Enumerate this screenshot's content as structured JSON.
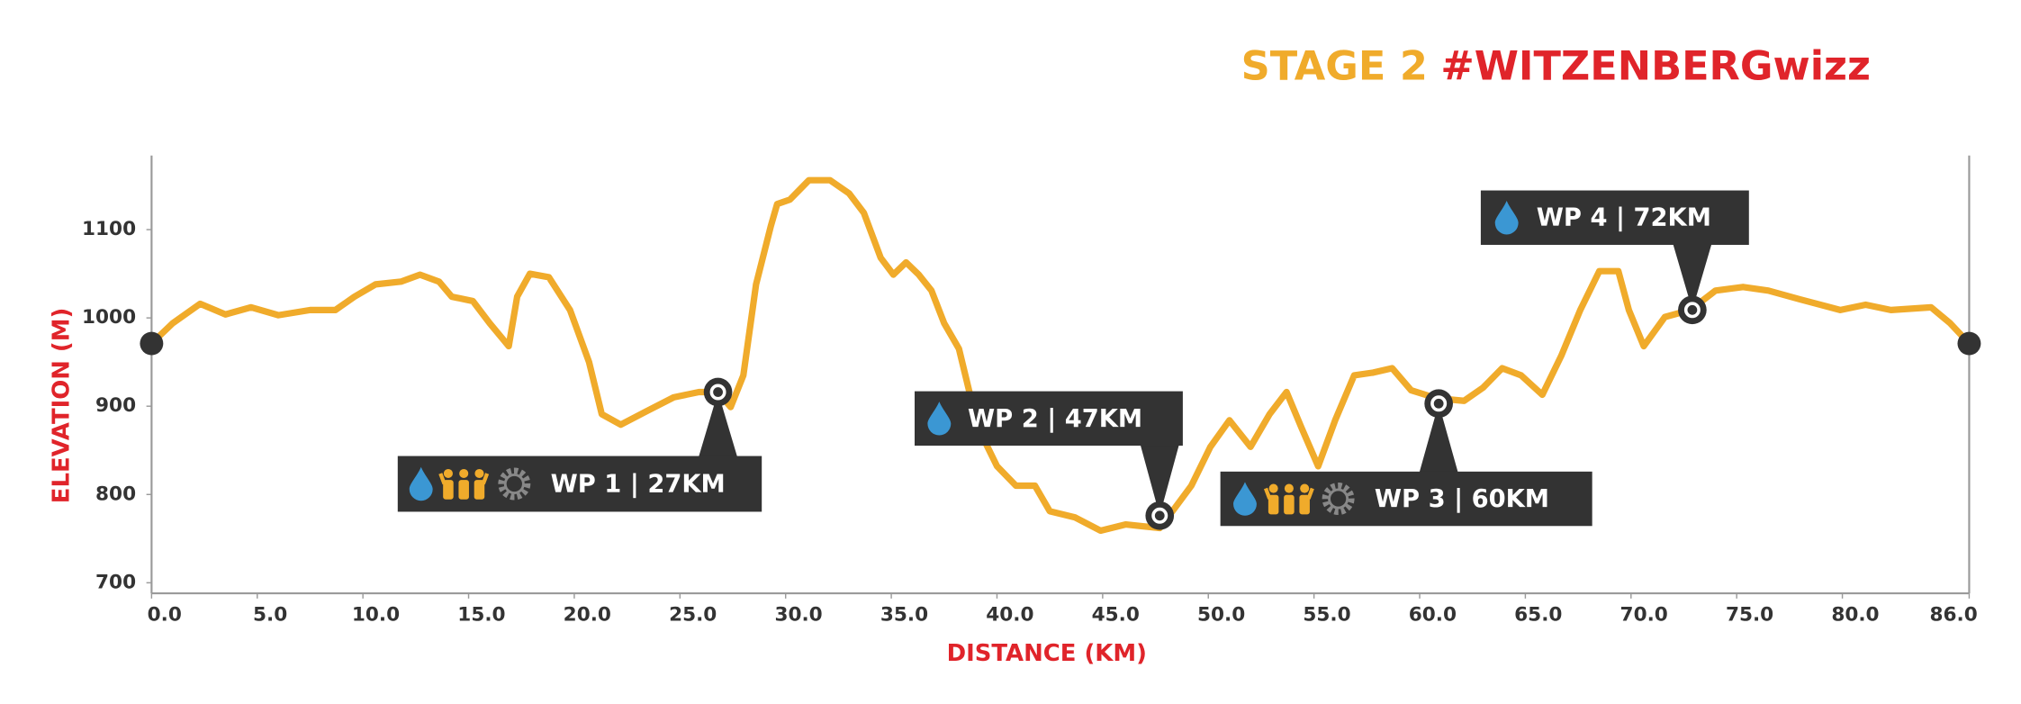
{
  "chart_data": {
    "type": "line",
    "title": {
      "part1": "STAGE 2",
      "part2": "#WITZENBERGwizz"
    },
    "x_label": "DISTANCE (KM)",
    "y_label": "ELEVATION (M)",
    "color": "#f0ab2b",
    "x": [
      0,
      1,
      2.3,
      3.5,
      4.7,
      6.0,
      7.5,
      8.7,
      9.6,
      10.6,
      11.8,
      12.7,
      13.6,
      14.2,
      15.2,
      16.0,
      16.9,
      17.3,
      17.9,
      18.8,
      19.8,
      20.7,
      21.3,
      22.2,
      23.4,
      24.7,
      25.9,
      26.8,
      27.4,
      28.0,
      28.6,
      29.3,
      29.6,
      30.2,
      31.1,
      32.1,
      33.0,
      33.7,
      34.5,
      35.1,
      35.7,
      36.3,
      36.9,
      37.5,
      38.2,
      39.1,
      40.0,
      40.9,
      41.8,
      42.5,
      43.7,
      44.9,
      46.1,
      47.7,
      48.3,
      49.2,
      50.1,
      51.0,
      52.0,
      52.9,
      53.7,
      54.4,
      55.2,
      56.0,
      56.9,
      57.8,
      58.7,
      59.6,
      60.8,
      62.1,
      63.0,
      63.9,
      64.8,
      65.8,
      66.7,
      67.6,
      68.5,
      69.4,
      69.9,
      70.6,
      71.6,
      72.8,
      74.0,
      75.3,
      76.5,
      78.0,
      79.9,
      81.1,
      82.3,
      84.2,
      85.1,
      86.0
    ],
    "values": [
      971,
      994,
      1016,
      1004,
      1012,
      1003,
      1009,
      1009,
      1024,
      1038,
      1041,
      1049,
      1041,
      1024,
      1019,
      994,
      968,
      1024,
      1050,
      1046,
      1009,
      950,
      891,
      879,
      894,
      910,
      916,
      916,
      899,
      935,
      1038,
      1104,
      1129,
      1134,
      1156,
      1156,
      1141,
      1119,
      1068,
      1049,
      1063,
      1049,
      1031,
      994,
      965,
      876,
      832,
      810,
      810,
      781,
      774,
      759,
      766,
      762,
      781,
      810,
      854,
      884,
      854,
      891,
      916,
      876,
      832,
      884,
      935,
      938,
      943,
      918,
      909,
      906,
      921,
      943,
      935,
      913,
      957,
      1009,
      1053,
      1053,
      1009,
      968,
      1001,
      1009,
      1031,
      1035,
      1031,
      1021,
      1009,
      1015,
      1009,
      1012,
      994,
      971
    ],
    "xlim": [
      0,
      86
    ],
    "ylim": [
      688,
      1184
    ],
    "xticks": [
      {
        "value": 0,
        "label": "0.0"
      },
      {
        "value": 5,
        "label": "5.0"
      },
      {
        "value": 10,
        "label": "10.0"
      },
      {
        "value": 15,
        "label": "15.0"
      },
      {
        "value": 20,
        "label": "20.0"
      },
      {
        "value": 25,
        "label": "25.0"
      },
      {
        "value": 30,
        "label": "30.0"
      },
      {
        "value": 35,
        "label": "35.0"
      },
      {
        "value": 40,
        "label": "40.0"
      },
      {
        "value": 45,
        "label": "45.0"
      },
      {
        "value": 50,
        "label": "50.0"
      },
      {
        "value": 55,
        "label": "55.0"
      },
      {
        "value": 60,
        "label": "60.0"
      },
      {
        "value": 65,
        "label": "65.0"
      },
      {
        "value": 70,
        "label": "70.0"
      },
      {
        "value": 75,
        "label": "75.0"
      },
      {
        "value": 80,
        "label": "80.0"
      },
      {
        "value": 86,
        "label": "86.0"
      }
    ],
    "yticks": [
      700,
      800,
      900,
      1000,
      1100
    ],
    "annotations": [
      {
        "label": "WP 1 | 27KM",
        "x": 26.8,
        "y": 916
      },
      {
        "label": "WP 2 | 47KM",
        "x": 47.7,
        "y": 776
      },
      {
        "label": "WP 3 | 60KM",
        "x": 60.9,
        "y": 903
      },
      {
        "label": "WP 4 | 72KM",
        "x": 72.9,
        "y": 1009
      }
    ]
  }
}
